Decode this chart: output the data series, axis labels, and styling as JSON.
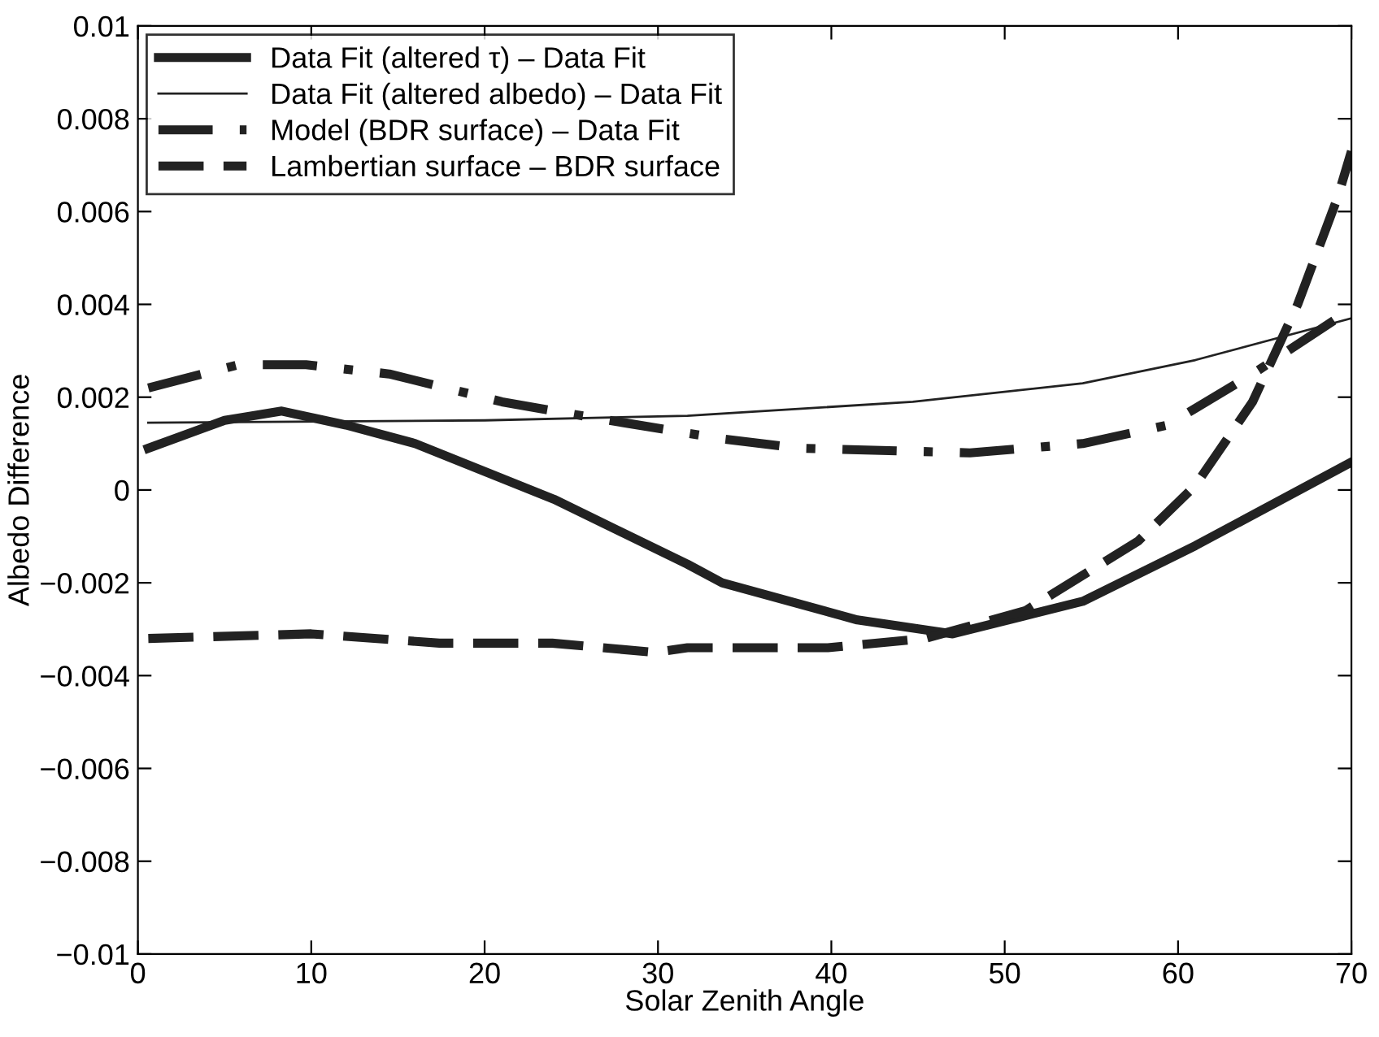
{
  "chart_data": {
    "type": "line",
    "xlabel": "Solar Zenith Angle",
    "ylabel": "Albedo Difference",
    "xlim": [
      0,
      70
    ],
    "ylim": [
      -0.01,
      0.01
    ],
    "xticks": [
      0,
      10,
      20,
      30,
      40,
      50,
      60,
      70
    ],
    "yticks": [
      {
        "value": -0.01,
        "label": "−0.01"
      },
      {
        "value": -0.008,
        "label": "−0.008"
      },
      {
        "value": -0.006,
        "label": "−0.006"
      },
      {
        "value": -0.004,
        "label": "−0.004"
      },
      {
        "value": -0.002,
        "label": "−0.002"
      },
      0,
      0.002,
      0.004,
      0.006,
      0.008,
      0.01
    ],
    "grid": false,
    "legend": "top left",
    "marker": "none",
    "series": [
      {
        "name": "Data Fit (altered τ) – Data Fit",
        "color": "#222222",
        "line_style": "solid",
        "x": [
          0.6,
          5,
          8.3,
          12,
          16,
          20,
          24,
          31.7,
          33.7,
          41.5,
          47,
          54.5,
          61,
          70
        ],
        "values": [
          0.0009,
          0.0015,
          0.0017,
          0.0014,
          0.001,
          0.0004,
          -0.0002,
          -0.0016,
          -0.002,
          -0.0028,
          -0.0031,
          -0.0024,
          -0.0012,
          0.0006
        ]
      },
      {
        "name": "Data Fit (altered albedo) – Data Fit",
        "color": "#222222",
        "line_style": "solid",
        "x": [
          0.6,
          20,
          31.7,
          44.7,
          54.5,
          61,
          70
        ],
        "values": [
          0.00145,
          0.0015,
          0.0016,
          0.0019,
          0.0023,
          0.0028,
          0.0037
        ]
      },
      {
        "name": "Model (BDR surface) – Data Fit",
        "color": "#222222",
        "line_style": "dashdot",
        "x": [
          0.6,
          5.8,
          9.7,
          14.5,
          21,
          25.6,
          33.7,
          38.2,
          48,
          54.5,
          59.4,
          64.3,
          70
        ],
        "values": [
          0.0022,
          0.0027,
          0.0027,
          0.0025,
          0.0019,
          0.0016,
          0.0011,
          0.0009,
          0.0008,
          0.001,
          0.0014,
          0.0025,
          0.0039
        ]
      },
      {
        "name": "Lambertian surface – BDR surface",
        "color": "#222222",
        "line_style": "dashed",
        "x": [
          0.6,
          10,
          17.4,
          23.9,
          29.8,
          31.7,
          39.8,
          45.4,
          51.2,
          57.7,
          61,
          64.3,
          66.9,
          69.2,
          70
        ],
        "values": [
          -0.0032,
          -0.0031,
          -0.0033,
          -0.0033,
          -0.0035,
          -0.0034,
          -0.0034,
          -0.0032,
          -0.0026,
          -0.0011,
          0.0001,
          0.0019,
          0.004,
          0.0063,
          0.0073
        ]
      }
    ]
  }
}
